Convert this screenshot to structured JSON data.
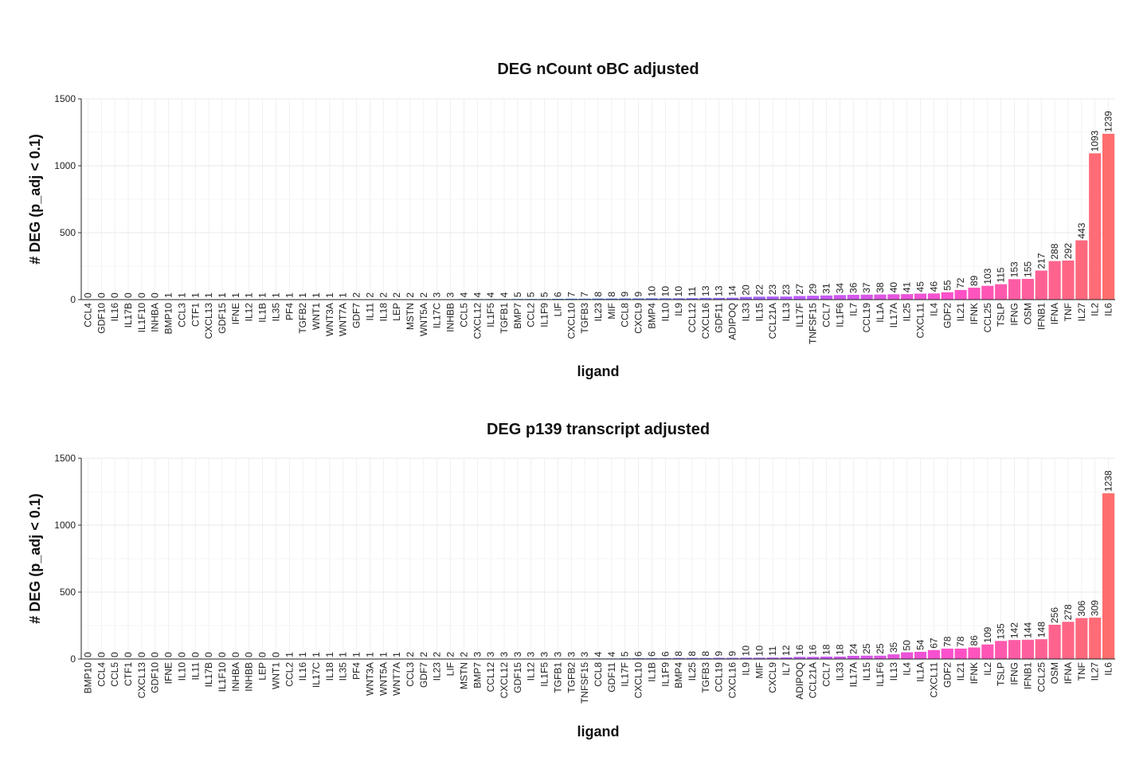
{
  "chart_data": [
    {
      "type": "bar",
      "title": "DEG nCount oBC adjusted",
      "xlabel": "ligand",
      "ylabel": "# DEG (p_adj < 0.1)",
      "ylim": [
        0,
        1500
      ],
      "yticks": [
        0,
        500,
        1000,
        1500
      ],
      "grid": true,
      "legend": "none",
      "categories": [
        "CCL4",
        "GDF10",
        "IL16",
        "IL17B",
        "IL1F10",
        "INHBA",
        "BMP10",
        "CCL3",
        "CTF1",
        "CXCL13",
        "GDF15",
        "IFNE",
        "IL12",
        "IL1B",
        "IL35",
        "PF4",
        "TGFB2",
        "WNT1",
        "WNT3A",
        "WNT7A",
        "GDF7",
        "IL11",
        "IL18",
        "LEP",
        "MSTN",
        "WNT5A",
        "IL17C",
        "INHBB",
        "CCL5",
        "CXCL12",
        "IL1F5",
        "TGFB1",
        "BMP7",
        "CCL2",
        "IL1F9",
        "LIF",
        "CXCL10",
        "TGFB3",
        "IL23",
        "MIF",
        "CCL8",
        "CXCL9",
        "BMP4",
        "IL10",
        "IL9",
        "CCL12",
        "CXCL16",
        "GDF11",
        "ADIPOQ",
        "IL33",
        "IL15",
        "CCL21A",
        "IL13",
        "IL17F",
        "TNFSF15",
        "CCL7",
        "IL1F6",
        "IL7",
        "CCL19",
        "IL1A",
        "IL17A",
        "IL25",
        "CXCL11",
        "IL4",
        "GDF2",
        "IL21",
        "IFNK",
        "CCL25",
        "TSLP",
        "IFNG",
        "OSM",
        "IFNB1",
        "IFNA",
        "TNF",
        "IL27",
        "IL2",
        "IL6"
      ],
      "values": [
        0,
        0,
        0,
        0,
        0,
        0,
        1,
        1,
        1,
        1,
        1,
        1,
        1,
        1,
        1,
        1,
        1,
        1,
        1,
        1,
        2,
        2,
        2,
        2,
        2,
        2,
        3,
        3,
        4,
        4,
        4,
        4,
        5,
        5,
        5,
        6,
        7,
        7,
        8,
        8,
        9,
        9,
        10,
        10,
        10,
        11,
        13,
        13,
        14,
        20,
        22,
        23,
        23,
        27,
        29,
        31,
        34,
        36,
        37,
        38,
        40,
        41,
        45,
        46,
        55,
        72,
        89,
        103,
        115,
        153,
        155,
        217,
        288,
        292,
        443,
        1093,
        1239
      ]
    },
    {
      "type": "bar",
      "title": "DEG p139 transcript adjusted",
      "xlabel": "ligand",
      "ylabel": "# DEG (p_adj < 0.1)",
      "ylim": [
        0,
        1500
      ],
      "yticks": [
        0,
        500,
        1000,
        1500
      ],
      "grid": true,
      "legend": "none",
      "categories": [
        "BMP10",
        "CCL4",
        "CCL5",
        "CTF1",
        "CXCL13",
        "GDF10",
        "IFNE",
        "IL10",
        "IL11",
        "IL17B",
        "IL1F10",
        "INHBA",
        "INHBB",
        "LEP",
        "WNT1",
        "CCL2",
        "IL16",
        "IL17C",
        "IL18",
        "IL35",
        "PF4",
        "WNT3A",
        "WNT5A",
        "WNT7A",
        "CCL3",
        "GDF7",
        "IL23",
        "LIF",
        "MSTN",
        "BMP7",
        "CCL12",
        "CXCL12",
        "GDF15",
        "IL12",
        "IL1F5",
        "TGFB1",
        "TGFB2",
        "TNFSF15",
        "CCL8",
        "GDF11",
        "IL17F",
        "CXCL10",
        "IL1B",
        "IL1F9",
        "BMP4",
        "IL25",
        "TGFB3",
        "CCL19",
        "CXCL16",
        "IL9",
        "MIF",
        "CXCL9",
        "IL7",
        "ADIPOQ",
        "CCL21A",
        "CCL7",
        "IL33",
        "IL17A",
        "IL15",
        "IL1F6",
        "IL13",
        "IL4",
        "IL1A",
        "CXCL11",
        "GDF2",
        "IL21",
        "IFNK",
        "IL2",
        "TSLP",
        "IFNG",
        "IFNB1",
        "CCL25",
        "OSM",
        "IFNA",
        "TNF",
        "IL27",
        "IL6"
      ],
      "values": [
        0,
        0,
        0,
        0,
        0,
        0,
        0,
        0,
        0,
        0,
        0,
        0,
        0,
        0,
        0,
        1,
        1,
        1,
        1,
        1,
        1,
        1,
        1,
        1,
        2,
        2,
        2,
        2,
        2,
        3,
        3,
        3,
        3,
        3,
        3,
        3,
        3,
        3,
        4,
        4,
        5,
        6,
        6,
        6,
        8,
        8,
        8,
        9,
        9,
        10,
        10,
        11,
        12,
        16,
        16,
        18,
        18,
        24,
        25,
        25,
        35,
        50,
        54,
        67,
        78,
        78,
        86,
        109,
        135,
        142,
        144,
        148,
        256,
        278,
        306,
        309,
        1238
      ]
    }
  ]
}
